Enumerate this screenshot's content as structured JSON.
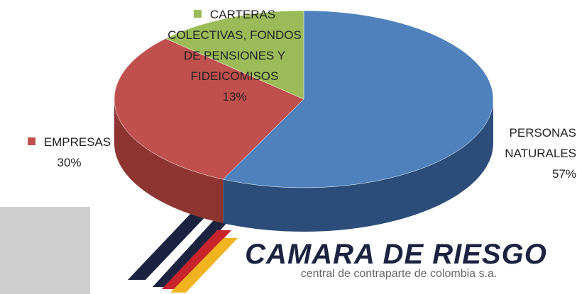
{
  "chart_data": {
    "type": "pie",
    "categories": [
      "PERSONAS NATURALES",
      "EMPRESAS",
      "CARTERAS COLECTIVAS, FONDOS DE PENSIONES Y FIDEICOMISOS"
    ],
    "values": [
      57,
      30,
      13
    ],
    "value_labels": [
      "57%",
      "30%",
      "13%"
    ],
    "colors": [
      "#4f81bd",
      "#c0504d",
      "#9bbb59"
    ],
    "side_colors": [
      "#2c4d7a",
      "#8e3532",
      "#6f8a3a"
    ]
  },
  "logo": {
    "title": "CAMARA DE RIESGO",
    "subtitle": "central de contraparte de colombia s.a."
  }
}
